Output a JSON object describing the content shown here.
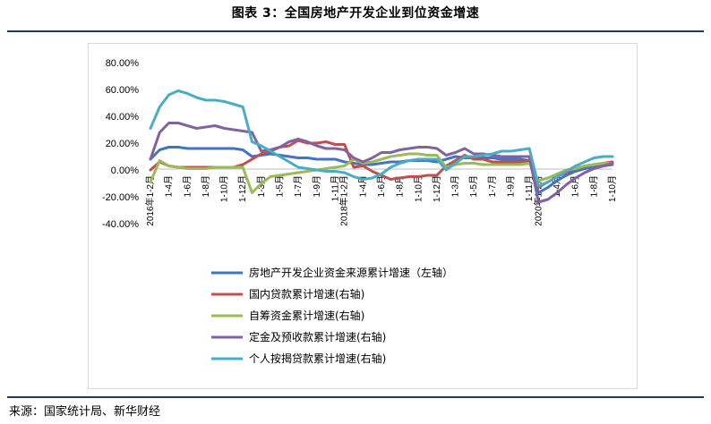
{
  "figure_title": "图表 3：全国房地产开发企业到位资金增速",
  "source": "来源：国家统计局、新华财经",
  "chart_data": {
    "type": "line",
    "title": "",
    "xlabel": "",
    "ylabel": "",
    "ylim": [
      -40,
      80
    ],
    "y_ticks": [
      "80.00%",
      "60.00%",
      "40.00%",
      "20.00%",
      "0.00%",
      "-20.00%",
      "-40.00%"
    ],
    "y_tick_values": [
      80,
      60,
      40,
      20,
      0,
      -20,
      -40
    ],
    "grid": false,
    "legend_position": "bottom",
    "x_tick_labels": [
      "2016年1-2月",
      "1-4月",
      "1-6月",
      "1-8月",
      "1-10月",
      "1-12月",
      "1-3月",
      "1-5月",
      "1-7月",
      "1-9月",
      "1-11月",
      "2018年1-2月",
      "1-4月",
      "1-6月",
      "1-8月",
      "1-10月",
      "1-12月",
      "1-3月",
      "1-5月",
      "1-7月",
      "1-9月",
      "1-11月",
      "2020年1-2月",
      "1-4月",
      "1-6月",
      "1-8月",
      "1-10月"
    ],
    "x_tick_index": [
      0,
      2,
      4,
      6,
      8,
      10,
      12,
      14,
      16,
      18,
      20,
      21,
      23,
      25,
      27,
      29,
      31,
      33,
      35,
      37,
      39,
      41,
      42,
      44,
      46,
      48,
      50
    ],
    "n_points": 51,
    "series": [
      {
        "name": "房地产开发企业资金来源累计增速（左轴）",
        "color": "#4472c4",
        "values": [
          8,
          15,
          17,
          17,
          16,
          16,
          16,
          16,
          16,
          16,
          15,
          10,
          11,
          12,
          11,
          10,
          9,
          9,
          8,
          8,
          8,
          6,
          5,
          4,
          4,
          5,
          6,
          6,
          7,
          7,
          7,
          6,
          8,
          10,
          9,
          9,
          9,
          9,
          8,
          8,
          8,
          7,
          -17,
          -13,
          -8,
          -4,
          -1,
          1,
          2,
          3,
          4
        ]
      },
      {
        "name": "国内贷款累计增速(右轴)",
        "color": "#c0504d",
        "values": [
          0,
          6,
          3,
          2,
          2,
          2,
          2,
          2,
          2,
          2,
          4,
          8,
          12,
          14,
          17,
          18,
          22,
          20,
          20,
          21,
          19,
          19,
          2,
          3,
          -1,
          -4,
          -7,
          -6,
          -5,
          -5,
          -4,
          -4,
          3,
          7,
          11,
          8,
          8,
          6,
          6,
          6,
          6,
          7,
          -13,
          -9,
          -5,
          -2,
          1,
          3,
          4,
          5,
          6
        ]
      },
      {
        "name": "自筹资金累计增速(右轴)",
        "color": "#9bbb59",
        "values": [
          -9,
          7,
          3,
          2,
          1,
          1,
          1,
          2,
          2,
          2,
          2,
          -17,
          -10,
          -5,
          -4,
          -3,
          -2,
          -1,
          0,
          1,
          2,
          3,
          8,
          5,
          6,
          8,
          10,
          11,
          12,
          12,
          11,
          11,
          2,
          4,
          5,
          5,
          4,
          4,
          4,
          4,
          4,
          5,
          -8,
          -6,
          -3,
          0,
          1,
          3,
          4,
          5,
          5
        ]
      },
      {
        "name": "定金及预收款累计增速(右轴)",
        "color": "#8064a2",
        "values": [
          8,
          28,
          35,
          35,
          33,
          31,
          32,
          33,
          31,
          30,
          29,
          28,
          14,
          15,
          17,
          21,
          23,
          21,
          18,
          16,
          16,
          15,
          9,
          6,
          9,
          13,
          13,
          15,
          16,
          17,
          17,
          16,
          11,
          13,
          16,
          12,
          12,
          11,
          10,
          10,
          10,
          10,
          -24,
          -22,
          -17,
          -11,
          -6,
          -2,
          1,
          3,
          5
        ]
      },
      {
        "name": "个人按揭贷款累计增速(右轴)",
        "color": "#4bacc6",
        "values": [
          31,
          47,
          56,
          59,
          57,
          54,
          52,
          52,
          51,
          49,
          47,
          21,
          18,
          14,
          10,
          6,
          2,
          1,
          0,
          -1,
          -1,
          -2,
          -5,
          -7,
          -6,
          -3,
          2,
          5,
          7,
          8,
          8,
          8,
          0,
          5,
          10,
          10,
          11,
          12,
          14,
          14,
          15,
          16,
          -12,
          -9,
          -5,
          -1,
          3,
          6,
          9,
          10,
          10
        ]
      }
    ]
  }
}
